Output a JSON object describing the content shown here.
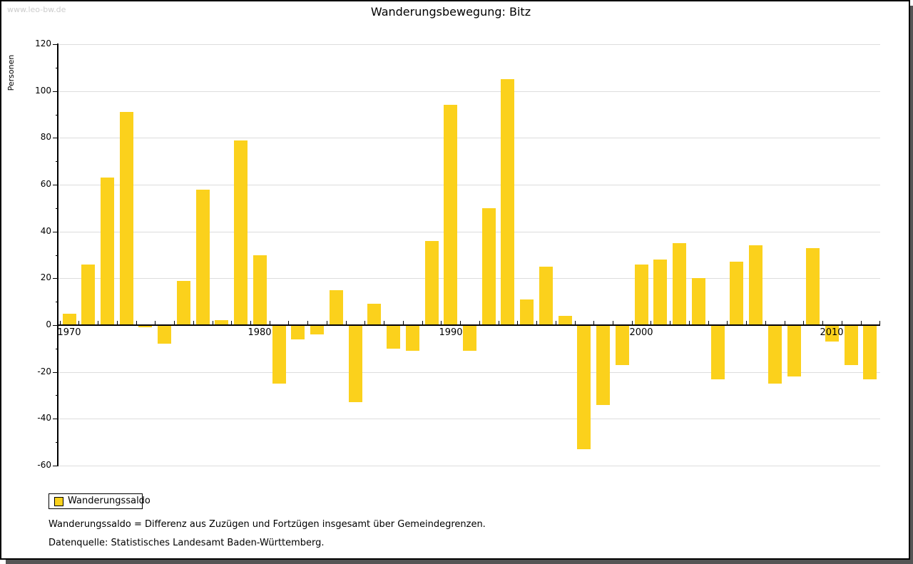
{
  "watermark": "www.leo-bw.de",
  "footnotes": [
    "Wanderungssaldo = Differenz aus Zuzügen und Fortzügen insgesamt über Gemeindegrenzen.",
    "Datenquelle: Statistisches Landesamt Baden-Württemberg."
  ],
  "colors": {
    "bar": "#fbd11c",
    "grid": "#dddddd",
    "axis": "#000000",
    "watermark": "#cccccc",
    "shadow": "#555555"
  },
  "chart_data": {
    "type": "bar",
    "title": "Wanderungsbewegung: Bitz",
    "ylabel": "Personen",
    "series_name": "Wanderungssaldo",
    "x": [
      1970,
      1971,
      1972,
      1973,
      1974,
      1975,
      1976,
      1977,
      1978,
      1979,
      1980,
      1981,
      1982,
      1983,
      1984,
      1985,
      1986,
      1987,
      1988,
      1989,
      1990,
      1991,
      1992,
      1993,
      1994,
      1995,
      1996,
      1997,
      1998,
      1999,
      2000,
      2001,
      2002,
      2003,
      2004,
      2005,
      2006,
      2007,
      2008,
      2009,
      2010,
      2011,
      2012
    ],
    "values": [
      5,
      26,
      63,
      91,
      -1,
      -8,
      19,
      58,
      2,
      79,
      30,
      -25,
      -6,
      -4,
      15,
      -33,
      9,
      -10,
      -11,
      36,
      94,
      -11,
      50,
      105,
      11,
      25,
      4,
      -53,
      -34,
      -17,
      26,
      28,
      35,
      20,
      -23,
      27,
      34,
      -25,
      -22,
      33,
      -7,
      -17,
      -23
    ],
    "ylim": [
      -60,
      120
    ],
    "ytick_major": 20,
    "ytick_minor": 10,
    "x_labeled_years": [
      1970,
      1980,
      1990,
      2000,
      2010
    ],
    "grid": true,
    "legend_position": "bottom-left"
  }
}
